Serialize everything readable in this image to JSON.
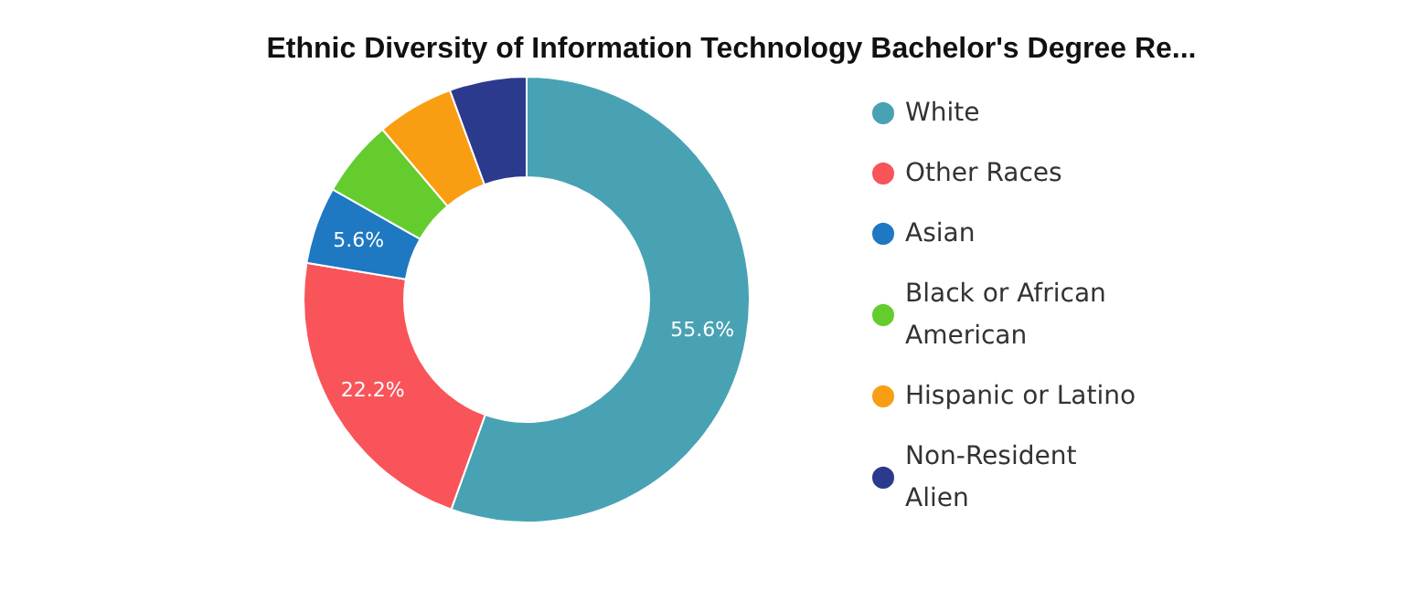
{
  "chart_data": {
    "type": "donut",
    "title": "Ethnic Diversity of Information Technology Bachelor's Degree Re...",
    "categories": [
      "White",
      "Other Races",
      "Asian",
      "Black or African American",
      "Hispanic or Latino",
      "Non-Resident Alien"
    ],
    "values": [
      55.6,
      22.2,
      5.6,
      5.6,
      5.6,
      5.6
    ],
    "value_labels": [
      "55.6%",
      "22.2%",
      "5.6%",
      null,
      null,
      null
    ],
    "colors": [
      "#48a2b4",
      "#f9545a",
      "#1e78c2",
      "#65cc2e",
      "#f99e13",
      "#2c3a8d"
    ],
    "legend": "right"
  }
}
